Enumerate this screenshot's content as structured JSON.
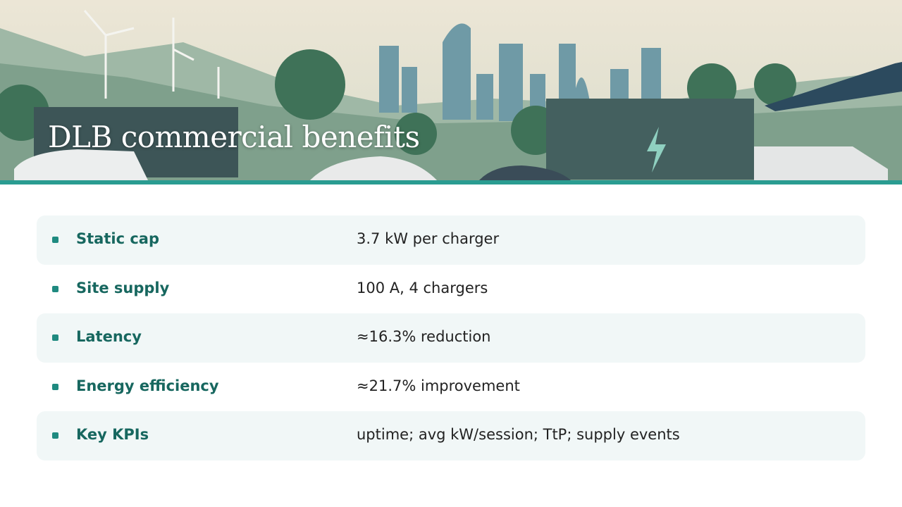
{
  "title": "DLB commercial benefits",
  "rows": [
    {
      "label": "Static cap",
      "value": "3.7 kW per charger"
    },
    {
      "label": "Site supply",
      "value": "100 A, 4 chargers"
    },
    {
      "label": "Latency",
      "value": "≈16.3% reduction"
    },
    {
      "label": "Energy efficiency",
      "value": "≈21.7% improvement"
    },
    {
      "label": "Key KPIs",
      "value": "uptime; avg kW/session; TtP; supply events"
    }
  ]
}
